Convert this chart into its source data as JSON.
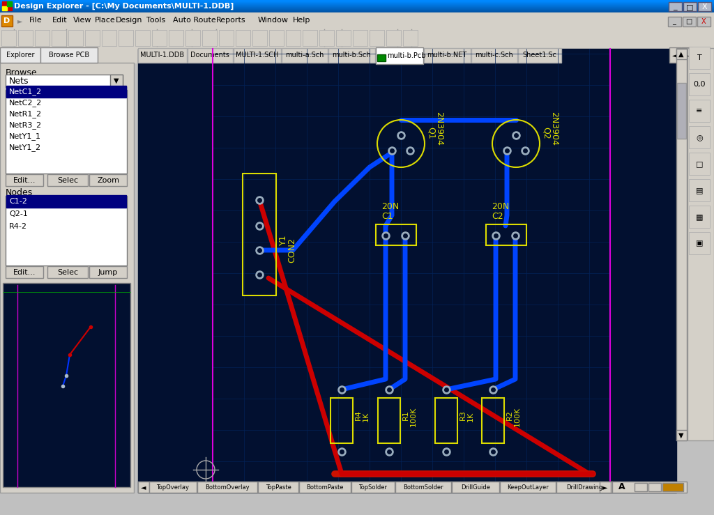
{
  "title_bar": "Design Explorer - [C:\\My Documents\\MULTI-1.DDB]",
  "menu_items": [
    "File",
    "Edit",
    "View",
    "Place",
    "Design",
    "Tools",
    "Auto Route",
    "Reports",
    "Window",
    "Help"
  ],
  "tabs_top": [
    "MULTI-1.DDB",
    "Documents",
    "MULTI-1.SCH",
    "multi-a.Sch",
    "multi-b.Sch",
    "multi-b.Pcb",
    "multi-b.NET",
    "multi-c.Sch",
    "Sheet1.Sc"
  ],
  "active_tab": "multi-b.Pcb",
  "nets_list": [
    "NetC1_2",
    "NetC2_2",
    "NetR1_2",
    "NetR3_2",
    "NetY1_1",
    "NetY1_2"
  ],
  "nets_selected": "NetC1_2",
  "nodes_list": [
    "C1-2",
    "Q2-1",
    "R4-2"
  ],
  "nodes_selected": "C1-2",
  "left_buttons_nets": [
    "Edit...",
    "Selec",
    "Zoom"
  ],
  "left_buttons_nodes": [
    "Edit...",
    "Selec",
    "Jump"
  ],
  "bottom_tabs": [
    "TopOverlay",
    "BottomOverlay",
    "TopPaste",
    "BottomPaste",
    "TopSolder",
    "BottomSolder",
    "DrillGuide",
    "KeepOutLayer",
    "DrillDrawing"
  ],
  "pcb_bg": "#021030",
  "window_bg": "#c0c0c0"
}
